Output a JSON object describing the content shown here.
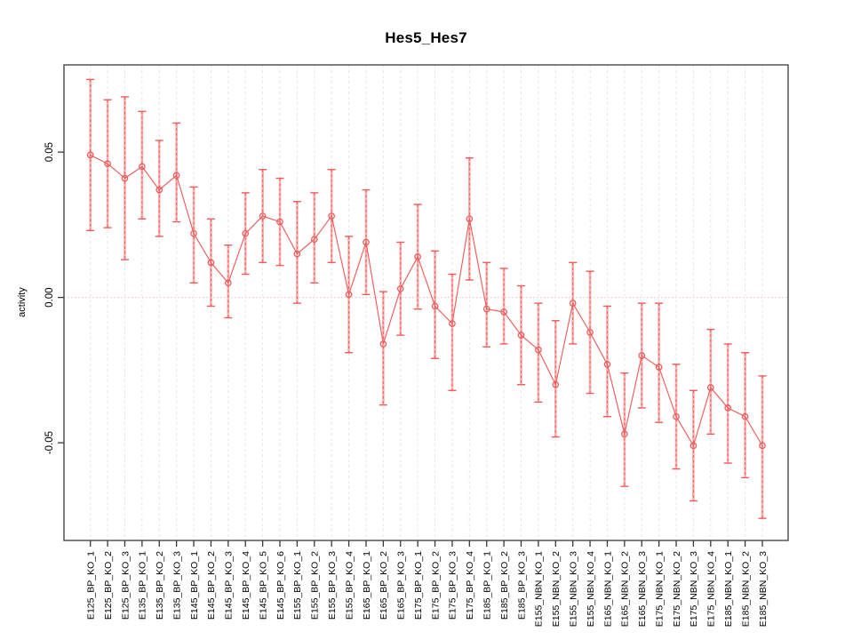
{
  "chart_data": {
    "type": "line",
    "title": "Hes5_Hes7",
    "ylabel": "activity",
    "xlabel": "",
    "point_style": "open-circle-with-error-bars",
    "legend": "none",
    "grid": "vertical dashed gridlines at each category; dotted horizontal line at y=0",
    "series_color": "#ee5c5c",
    "errorbar_stem_color": "#ffb0b0",
    "gridline_color": "#e6e6e6",
    "zero_line_color": "#e8caca",
    "axis_color": "#3a3a3a",
    "ylim": [
      -0.0836,
      0.08
    ],
    "yticks": [
      0.05,
      0.0,
      -0.05
    ],
    "ytick_labels": [
      "0.05",
      "0.00",
      "-0.05"
    ],
    "categories": [
      "E125_BP_KO_1",
      "E125_BP_KO_2",
      "E125_BP_KO_3",
      "E135_BP_KO_1",
      "E135_BP_KO_2",
      "E135_BP_KO_3",
      "E145_BP_KO_1",
      "E145_BP_KO_2",
      "E145_BP_KO_3",
      "E145_BP_KO_4",
      "E145_BP_KO_5",
      "E145_BP_KO_6",
      "E155_BP_KO_1",
      "E155_BP_KO_2",
      "E155_BP_KO_3",
      "E155_BP_KO_4",
      "E165_BP_KO_1",
      "E165_BP_KO_2",
      "E165_BP_KO_3",
      "E175_BP_KO_1",
      "E175_BP_KO_2",
      "E175_BP_KO_3",
      "E175_BP_KO_4",
      "E185_BP_KO_1",
      "E185_BP_KO_2",
      "E185_BP_KO_3",
      "E155_NBN_KO_1",
      "E155_NBN_KO_2",
      "E155_NBN_KO_3",
      "E155_NBN_KO_4",
      "E165_NBN_KO_1",
      "E165_NBN_KO_2",
      "E165_NBN_KO_3",
      "E175_NBN_KO_1",
      "E175_NBN_KO_2",
      "E175_NBN_KO_3",
      "E175_NBN_KO_4",
      "E185_NBN_KO_1",
      "E185_NBN_KO_2",
      "E185_NBN_KO_3"
    ],
    "values": [
      0.049,
      0.046,
      0.041,
      0.045,
      0.037,
      0.042,
      0.022,
      0.012,
      0.005,
      0.022,
      0.028,
      0.026,
      0.015,
      0.02,
      0.028,
      0.001,
      0.019,
      -0.016,
      0.003,
      0.014,
      -0.003,
      -0.009,
      0.027,
      -0.004,
      -0.005,
      -0.013,
      -0.018,
      -0.03,
      -0.002,
      -0.012,
      -0.023,
      -0.047,
      -0.02,
      -0.024,
      -0.041,
      -0.051,
      -0.031,
      -0.038,
      -0.041,
      -0.051
    ],
    "err_low": [
      0.023,
      0.024,
      0.013,
      0.027,
      0.021,
      0.026,
      0.005,
      -0.003,
      -0.007,
      0.008,
      0.012,
      0.011,
      -0.002,
      0.005,
      0.012,
      -0.019,
      0.001,
      -0.037,
      -0.013,
      -0.004,
      -0.021,
      -0.032,
      0.006,
      -0.017,
      -0.016,
      -0.03,
      -0.036,
      -0.048,
      -0.016,
      -0.033,
      -0.041,
      -0.065,
      -0.038,
      -0.043,
      -0.059,
      -0.07,
      -0.047,
      -0.057,
      -0.062,
      -0.076
    ],
    "err_high": [
      0.075,
      0.068,
      0.069,
      0.064,
      0.054,
      0.06,
      0.038,
      0.027,
      0.018,
      0.036,
      0.044,
      0.041,
      0.033,
      0.036,
      0.044,
      0.021,
      0.037,
      0.002,
      0.019,
      0.032,
      0.016,
      0.008,
      0.048,
      0.012,
      0.01,
      0.004,
      -0.002,
      -0.008,
      0.012,
      0.009,
      -0.003,
      -0.026,
      -0.002,
      -0.002,
      -0.023,
      -0.032,
      -0.011,
      -0.016,
      -0.019,
      -0.027
    ]
  }
}
